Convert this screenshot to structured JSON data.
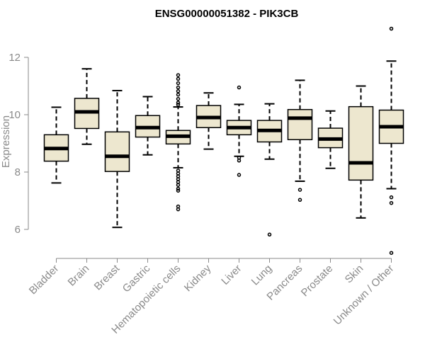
{
  "chart_data": {
    "type": "boxplot",
    "title": "ENSG00000051382 - PIK3CB",
    "xlabel": "",
    "ylabel": "Expression",
    "ylim": [
      5,
      13.2
    ],
    "yticks": [
      6,
      8,
      10,
      12
    ],
    "grid": false,
    "box_fill": "#ede7cf",
    "categories": [
      "Bladder",
      "Brain",
      "Breast",
      "Gastric",
      "Hematopoietic cells",
      "Kidney",
      "Liver",
      "Lung",
      "Pancreas",
      "Prostate",
      "Skin",
      "Unknown / Other"
    ],
    "boxes": [
      {
        "name": "Bladder",
        "whisker_low": 7.62,
        "q1": 8.38,
        "median": 8.82,
        "q3": 9.3,
        "whisker_high": 10.26,
        "outliers": []
      },
      {
        "name": "Brain",
        "whisker_low": 8.97,
        "q1": 9.52,
        "median": 10.1,
        "q3": 10.57,
        "whisker_high": 11.6,
        "outliers": []
      },
      {
        "name": "Breast",
        "whisker_low": 6.07,
        "q1": 8.02,
        "median": 8.55,
        "q3": 9.4,
        "whisker_high": 10.84,
        "outliers": []
      },
      {
        "name": "Gastric",
        "whisker_low": 8.6,
        "q1": 9.22,
        "median": 9.55,
        "q3": 9.97,
        "whisker_high": 10.63,
        "outliers": []
      },
      {
        "name": "Hematopoietic cells",
        "whisker_low": 8.15,
        "q1": 8.98,
        "median": 9.25,
        "q3": 9.45,
        "whisker_high": 10.27,
        "outliers": [
          11.38,
          11.25,
          11.1,
          10.95,
          10.82,
          10.7,
          10.55,
          10.42,
          10.35,
          8.05,
          7.95,
          7.85,
          7.75,
          7.65,
          7.55,
          7.42,
          7.35,
          6.8,
          6.7
        ]
      },
      {
        "name": "Kidney",
        "whisker_low": 8.8,
        "q1": 9.55,
        "median": 9.9,
        "q3": 10.32,
        "whisker_high": 10.76,
        "outliers": []
      },
      {
        "name": "Liver",
        "whisker_low": 8.55,
        "q1": 9.3,
        "median": 9.55,
        "q3": 9.8,
        "whisker_high": 10.36,
        "outliers": [
          10.95,
          8.5,
          8.4,
          7.9
        ]
      },
      {
        "name": "Lung",
        "whisker_low": 8.45,
        "q1": 9.05,
        "median": 9.45,
        "q3": 9.8,
        "whisker_high": 10.38,
        "outliers": [
          5.82
        ]
      },
      {
        "name": "Pancreas",
        "whisker_low": 7.68,
        "q1": 9.13,
        "median": 9.88,
        "q3": 10.18,
        "whisker_high": 11.2,
        "outliers": [
          7.38,
          7.03
        ]
      },
      {
        "name": "Prostate",
        "whisker_low": 8.13,
        "q1": 8.85,
        "median": 9.15,
        "q3": 9.53,
        "whisker_high": 10.13,
        "outliers": []
      },
      {
        "name": "Skin",
        "whisker_low": 6.4,
        "q1": 7.72,
        "median": 8.32,
        "q3": 10.28,
        "whisker_high": 11.0,
        "outliers": []
      },
      {
        "name": "Unknown / Other",
        "whisker_low": 7.42,
        "q1": 9.0,
        "median": 9.58,
        "q3": 10.16,
        "whisker_high": 11.87,
        "outliers": [
          13.0,
          7.12,
          6.92,
          5.18
        ]
      }
    ]
  }
}
